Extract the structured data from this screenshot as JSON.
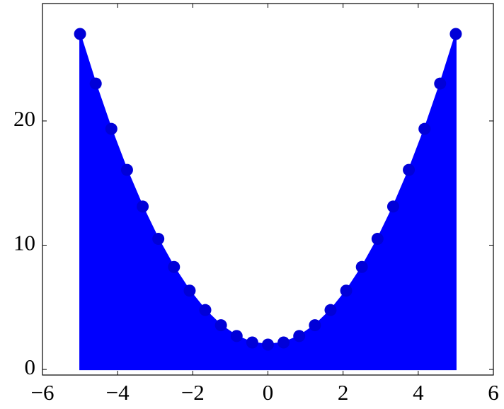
{
  "chart_data": {
    "type": "area",
    "x": [
      -5,
      -4.583,
      -4.167,
      -3.75,
      -3.333,
      -2.917,
      -2.5,
      -2.083,
      -1.667,
      -1.25,
      -0.833,
      -0.417,
      0,
      0.417,
      0.833,
      1.25,
      1.667,
      2.083,
      2.5,
      2.917,
      3.333,
      3.75,
      4.167,
      4.583,
      5
    ],
    "series": [
      {
        "color": "#0000ff",
        "marker_color": "#0000d8",
        "values": [
          27,
          23.01,
          19.36,
          16.06,
          13.11,
          10.51,
          8.25,
          6.34,
          4.78,
          3.56,
          2.69,
          2.17,
          2,
          2.17,
          2.69,
          3.56,
          4.78,
          6.34,
          8.25,
          10.51,
          13.11,
          16.06,
          19.36,
          23.01,
          27
        ]
      }
    ],
    "xlim": [
      -6,
      6
    ],
    "xticks": [
      {
        "value": -6,
        "label": "−6"
      },
      {
        "value": -4,
        "label": "−4"
      },
      {
        "value": -2,
        "label": "−2"
      },
      0,
      2,
      4,
      6
    ],
    "ylim": [
      -0.45,
      29.45
    ],
    "yticks": [
      0,
      10,
      20
    ],
    "grid": false
  }
}
